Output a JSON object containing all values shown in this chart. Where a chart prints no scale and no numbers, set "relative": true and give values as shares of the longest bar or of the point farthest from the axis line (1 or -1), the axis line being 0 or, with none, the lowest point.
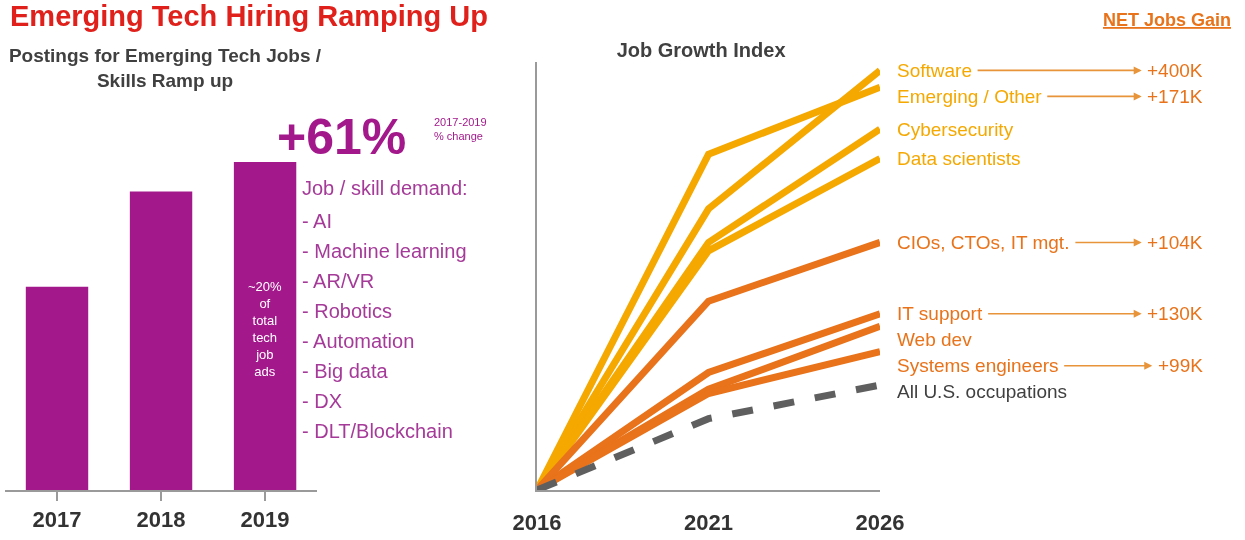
{
  "chart_data": [
    {
      "type": "bar",
      "title": "Emerging Tech Hiring Ramping Up",
      "subtitle": "Postings for Emerging Tech Jobs / Skills Ramp up",
      "categories": [
        "2017",
        "2018",
        "2019"
      ],
      "values": [
        0.62,
        0.91,
        1
      ],
      "color": "#a3198c",
      "relative": true,
      "grid": false,
      "legend": false,
      "annotations": [
        "+61%",
        "2017-2019 % change",
        "Job / skill demand:",
        "- AI",
        "- Machine learning",
        "- AR/VR",
        "- Robotics",
        "- Automation",
        "- Big data",
        "- DX",
        "- DLT/Blockchain",
        "~20% of total tech job ads"
      ]
    },
    {
      "type": "line",
      "title": "Job Growth Index",
      "categories": [
        "2016",
        "2021",
        "2026"
      ],
      "relative": true,
      "grid": false,
      "legend": false,
      "series": [
        {
          "name": "Software",
          "color": "#f5a800",
          "values": [
            0,
            0.67,
            1
          ]
        },
        {
          "name": "Emerging / Other",
          "color": "#f5a800",
          "values": [
            0,
            0.8,
            0.96
          ]
        },
        {
          "name": "Cybersecurity",
          "color": "#f5a800",
          "values": [
            0,
            0.59,
            0.86
          ]
        },
        {
          "name": "Data scientists",
          "color": "#f5a800",
          "values": [
            0,
            0.57,
            0.79
          ]
        },
        {
          "name": "CIOs, CTOs, IT mgt.",
          "color": "#e8731a",
          "values": [
            0,
            0.45,
            0.59
          ]
        },
        {
          "name": "IT support",
          "color": "#e8731a",
          "values": [
            0,
            0.28,
            0.42
          ]
        },
        {
          "name": "Web dev",
          "color": "#e8731a",
          "values": [
            0,
            0.24,
            0.39
          ]
        },
        {
          "name": "Systems engineers",
          "color": "#e8731a",
          "values": [
            0,
            0.23,
            0.33
          ]
        },
        {
          "name": "All U.S. occupations",
          "color": "#5f5f5f",
          "values": [
            0,
            0.17,
            0.25
          ],
          "line_style": "dashed"
        }
      ],
      "annotations": [
        "NET Jobs Gain",
        "+400K",
        "+171K",
        "+104K",
        "+130K",
        "+99K"
      ]
    }
  ]
}
